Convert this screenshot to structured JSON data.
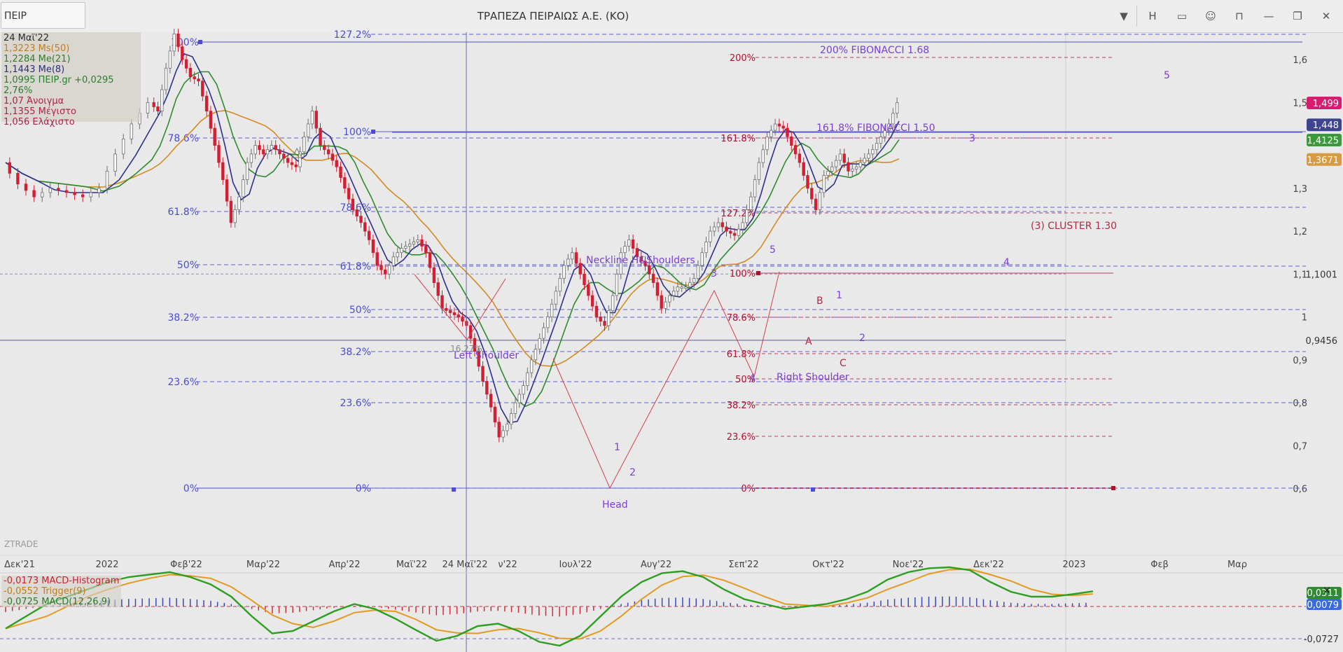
{
  "header": {
    "symbol": "ΠΕΙΡ",
    "title": "ΤΡΑΠΕΖΑ ΠΕΙΡΑΙΩΣ Α.Ε. (ΚΟ)",
    "dropdown_icon": "chevron-down-icon",
    "h_label": "H",
    "buttons": [
      "window-icon",
      "face-icon",
      "lock-icon",
      "minimize-icon",
      "restore-icon",
      "close-icon"
    ]
  },
  "info_panel": [
    {
      "text": "24 Μαϊ'22",
      "color": "#2a2a2a"
    },
    {
      "text": "1,3223 Ms(50)",
      "color": "#c07d1c"
    },
    {
      "text": "1,2284 Me(21)",
      "color": "#2e7d2e"
    },
    {
      "text": "1,1443 Me(8)",
      "color": "#2b2f7e"
    },
    {
      "text": "1,0995 ΠΕΙΡ.gr +0,0295 2,76%",
      "color": "#2e7d2e"
    },
    {
      "text": "1,07 Άνοιγμα",
      "color": "#b0204a"
    },
    {
      "text": "1,1355 Μέγιστο",
      "color": "#b0204a"
    },
    {
      "text": "1,056 Ελάχιστο",
      "color": "#b0204a"
    }
  ],
  "watermark": "ZTRADE",
  "colors": {
    "up": "#6d6d6d",
    "down": "#d21f33",
    "ma50": "#d48a22",
    "ma21": "#2e8b2e",
    "ma8": "#2d2f8c",
    "fib_blue": "#4b4bd6",
    "fib_red": "#b01030",
    "purple": "#7a3fd6",
    "macd": "#2d9e1f",
    "trigger": "#e39a1f",
    "hist_pos": "#3a48b8",
    "hist_neg": "#d22d3a"
  },
  "chart_data": {
    "type": "candlestick",
    "y_axis_ticks": [
      "1,6",
      "1,5",
      "1,3",
      "1,2",
      "1,1",
      "1",
      "0,9",
      "0,8",
      "0,7",
      "0,6"
    ],
    "ylim": [
      0.57,
      1.72
    ],
    "x_axis_labels": [
      "Δεκ'21",
      "2022",
      "Φεβ'22",
      "Μαρ'22",
      "Απρ'22",
      "Μαϊ'22",
      "24 Μαϊ'22",
      "ν'22",
      "Ιουλ'22",
      "Αυγ'22",
      "Σεπ'22",
      "Οκτ'22",
      "Νοε'22",
      "Δεκ'22",
      "2023",
      "Φεβ",
      "Μαρ"
    ],
    "cursor_date": "24 Μαϊ'22",
    "price_path": [
      [
        0,
        1.36
      ],
      [
        8,
        1.31
      ],
      [
        16,
        1.28
      ],
      [
        24,
        1.3
      ],
      [
        32,
        1.29
      ],
      [
        40,
        1.28
      ],
      [
        48,
        1.3
      ],
      [
        56,
        1.38
      ],
      [
        64,
        1.45
      ],
      [
        72,
        1.5
      ],
      [
        76,
        1.48
      ],
      [
        80,
        1.58
      ],
      [
        84,
        1.66
      ],
      [
        88,
        1.6
      ],
      [
        92,
        1.56
      ],
      [
        96,
        1.55
      ],
      [
        100,
        1.48
      ],
      [
        104,
        1.4
      ],
      [
        108,
        1.32
      ],
      [
        112,
        1.22
      ],
      [
        116,
        1.28
      ],
      [
        120,
        1.36
      ],
      [
        124,
        1.4
      ],
      [
        128,
        1.38
      ],
      [
        132,
        1.4
      ],
      [
        136,
        1.38
      ],
      [
        140,
        1.36
      ],
      [
        144,
        1.35
      ],
      [
        148,
        1.42
      ],
      [
        152,
        1.48
      ],
      [
        156,
        1.4
      ],
      [
        160,
        1.38
      ],
      [
        164,
        1.35
      ],
      [
        168,
        1.3
      ],
      [
        172,
        1.25
      ],
      [
        176,
        1.22
      ],
      [
        180,
        1.18
      ],
      [
        184,
        1.12
      ],
      [
        188,
        1.1
      ],
      [
        192,
        1.14
      ],
      [
        196,
        1.16
      ],
      [
        200,
        1.17
      ],
      [
        204,
        1.18
      ],
      [
        208,
        1.15
      ],
      [
        212,
        1.08
      ],
      [
        216,
        1.02
      ],
      [
        220,
        1.01
      ],
      [
        224,
        1.0
      ],
      [
        228,
        0.98
      ],
      [
        232,
        0.92
      ],
      [
        236,
        0.85
      ],
      [
        240,
        0.79
      ],
      [
        244,
        0.72
      ],
      [
        248,
        0.75
      ],
      [
        252,
        0.8
      ],
      [
        256,
        0.84
      ],
      [
        260,
        0.9
      ],
      [
        264,
        0.95
      ],
      [
        268,
        1.0
      ],
      [
        272,
        1.06
      ],
      [
        276,
        1.12
      ],
      [
        280,
        1.15
      ],
      [
        284,
        1.1
      ],
      [
        288,
        1.05
      ],
      [
        292,
        1.0
      ],
      [
        296,
        0.98
      ],
      [
        300,
        1.05
      ],
      [
        304,
        1.15
      ],
      [
        308,
        1.18
      ],
      [
        312,
        1.14
      ],
      [
        316,
        1.12
      ],
      [
        320,
        1.08
      ],
      [
        324,
        1.02
      ],
      [
        328,
        1.05
      ],
      [
        332,
        1.07
      ],
      [
        336,
        1.07
      ],
      [
        340,
        1.09
      ],
      [
        344,
        1.15
      ],
      [
        348,
        1.2
      ],
      [
        352,
        1.22
      ],
      [
        356,
        1.2
      ],
      [
        360,
        1.19
      ],
      [
        364,
        1.22
      ],
      [
        368,
        1.28
      ],
      [
        372,
        1.36
      ],
      [
        376,
        1.42
      ],
      [
        380,
        1.45
      ],
      [
        384,
        1.44
      ],
      [
        388,
        1.4
      ],
      [
        392,
        1.36
      ],
      [
        396,
        1.3
      ],
      [
        400,
        1.25
      ],
      [
        404,
        1.33
      ],
      [
        408,
        1.35
      ],
      [
        412,
        1.38
      ],
      [
        416,
        1.34
      ],
      [
        420,
        1.35
      ],
      [
        424,
        1.37
      ],
      [
        428,
        1.39
      ],
      [
        432,
        1.42
      ],
      [
        436,
        1.45
      ],
      [
        440,
        1.5
      ]
    ],
    "series": [
      {
        "name": "Ms(50)",
        "last_value": "1,3671"
      },
      {
        "name": "Me(21)",
        "last_value": "1,4125"
      },
      {
        "name": "Me(8)",
        "last_value": "1,448"
      },
      {
        "name": "ΠΕΙΡ.gr",
        "last_value": "1,499"
      }
    ],
    "horizontal_levels": [
      {
        "label": "1,1001",
        "value": 1.1001
      },
      {
        "label": "0,9456",
        "value": 0.9456
      }
    ],
    "fibonacci_sets": [
      {
        "name": "fib-1",
        "color": "blue",
        "levels": [
          "100%",
          "78.6%",
          "61.8%",
          "50%",
          "38.2%",
          "23.6%",
          "0%"
        ]
      },
      {
        "name": "fib-2",
        "color": "blue",
        "levels": [
          "127.2%",
          "100%",
          "78.6%",
          "61.8%",
          "50%",
          "38.2%",
          "23.6%",
          "0%"
        ]
      },
      {
        "name": "fib-3",
        "color": "red",
        "levels": [
          "200%",
          "161.8%",
          "127.2%",
          "100%",
          "78.6%",
          "61.8%",
          "50%",
          "38.2%",
          "23.6%",
          "0%"
        ]
      }
    ],
    "annotations": [
      "200%  FIBONACCI  1.68",
      "161.8%  FIBONACCI  1.50",
      "(3) CLUSTER  1.30",
      "Neckline H&Shoulders",
      "Left Shoulder",
      "Right Shoulder",
      "Head",
      "16.27%",
      "1",
      "2",
      "3",
      "4",
      "5",
      "A",
      "B",
      "C"
    ],
    "macd": {
      "histogram": "-0,0173 MACD-Histogram",
      "trigger": "-0,0552 Trigger(9)",
      "macd_line": "-0,0725 MACD(12,26,9)",
      "right_labels": [
        "0,0311",
        "0,0079",
        "-0,0727"
      ],
      "path": [
        [
          0,
          -0.045
        ],
        [
          10,
          -0.02
        ],
        [
          20,
          0.005
        ],
        [
          30,
          0.02
        ],
        [
          40,
          0.035
        ],
        [
          50,
          0.05
        ],
        [
          60,
          0.06
        ],
        [
          70,
          0.065
        ],
        [
          80,
          0.07
        ],
        [
          90,
          0.06
        ],
        [
          100,
          0.045
        ],
        [
          110,
          0.02
        ],
        [
          120,
          -0.02
        ],
        [
          130,
          -0.055
        ],
        [
          140,
          -0.05
        ],
        [
          150,
          -0.03
        ],
        [
          160,
          -0.01
        ],
        [
          170,
          0.005
        ],
        [
          180,
          -0.005
        ],
        [
          190,
          -0.025
        ],
        [
          200,
          -0.048
        ],
        [
          210,
          -0.07
        ],
        [
          220,
          -0.06
        ],
        [
          230,
          -0.04
        ],
        [
          240,
          -0.035
        ],
        [
          250,
          -0.05
        ],
        [
          260,
          -0.072
        ],
        [
          270,
          -0.08
        ],
        [
          280,
          -0.06
        ],
        [
          290,
          -0.02
        ],
        [
          300,
          0.02
        ],
        [
          310,
          0.05
        ],
        [
          320,
          0.068
        ],
        [
          330,
          0.072
        ],
        [
          340,
          0.06
        ],
        [
          350,
          0.035
        ],
        [
          360,
          0.015
        ],
        [
          370,
          0.005
        ],
        [
          380,
          -0.005
        ],
        [
          390,
          0.0
        ],
        [
          400,
          0.005
        ],
        [
          410,
          0.015
        ],
        [
          420,
          0.03
        ],
        [
          430,
          0.055
        ],
        [
          440,
          0.07
        ],
        [
          450,
          0.078
        ],
        [
          460,
          0.08
        ],
        [
          470,
          0.074
        ],
        [
          480,
          0.05
        ],
        [
          490,
          0.03
        ],
        [
          500,
          0.02
        ],
        [
          510,
          0.02
        ],
        [
          520,
          0.025
        ],
        [
          530,
          0.031
        ]
      ]
    }
  }
}
